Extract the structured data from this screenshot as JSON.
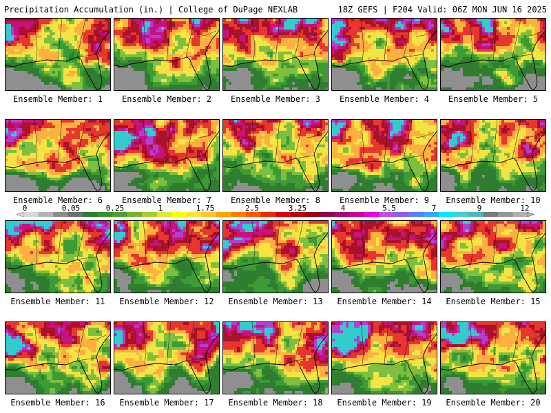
{
  "header": {
    "left": "Precipitation Accumulation (in.) | College of DuPage NEXLAB",
    "right": "18Z GEFS | F204 Valid: 06Z MON JUN 16 2025"
  },
  "members": [
    {
      "label": "Ensemble Member: 1"
    },
    {
      "label": "Ensemble Member: 2"
    },
    {
      "label": "Ensemble Member: 3"
    },
    {
      "label": "Ensemble Member: 4"
    },
    {
      "label": "Ensemble Member: 5"
    },
    {
      "label": "Ensemble Member: 6"
    },
    {
      "label": "Ensemble Member: 7"
    },
    {
      "label": "Ensemble Member: 8"
    },
    {
      "label": "Ensemble Member: 9"
    },
    {
      "label": "Ensemble Member: 10"
    },
    {
      "label": "Ensemble Member: 11"
    },
    {
      "label": "Ensemble Member: 12"
    },
    {
      "label": "Ensemble Member: 13"
    },
    {
      "label": "Ensemble Member: 14"
    },
    {
      "label": "Ensemble Member: 15"
    },
    {
      "label": "Ensemble Member: 16"
    },
    {
      "label": "Ensemble Member: 17"
    },
    {
      "label": "Ensemble Member: 18"
    },
    {
      "label": "Ensemble Member: 19"
    },
    {
      "label": "Ensemble Member: 20"
    }
  ],
  "legend": {
    "tick_labels": [
      "0",
      "0.05",
      "0.25",
      "1",
      "1.75",
      "2.5",
      "3.25",
      "4",
      "5.5",
      "7",
      "9",
      "12"
    ],
    "colors": [
      "#d8d8d8",
      "#b4b4b4",
      "#8c8c8c",
      "#6e6e6e",
      "#2e7d32",
      "#3a8f2c",
      "#4ea02e",
      "#77b52c",
      "#a6cc2e",
      "#e4e636",
      "#ffff00",
      "#ffe13a",
      "#ffc631",
      "#ffa400",
      "#ff7f00",
      "#ff5500",
      "#ee2a00",
      "#d80000",
      "#b80000",
      "#960018",
      "#8c0a4a",
      "#a8007f",
      "#c9009f",
      "#e600e6",
      "#c04de6",
      "#8a5fe6",
      "#5a7fff",
      "#37a8ff",
      "#00e6ff",
      "#40d0d0",
      "#50b8b8",
      "#7a7a7a",
      "#969696",
      "#b0b0b0"
    ]
  },
  "map_colors": {
    "gray": "#8f8f8f",
    "dark_green": "#2f7d2f",
    "green": "#3d9b35",
    "light_green": "#7fbf3f",
    "yellow": "#f4e442",
    "orange": "#fbb040",
    "red": "#e8362e",
    "dark_red": "#a8122a",
    "magenta": "#c8107f",
    "purple": "#b040d0",
    "cyan": "#33cccc"
  }
}
